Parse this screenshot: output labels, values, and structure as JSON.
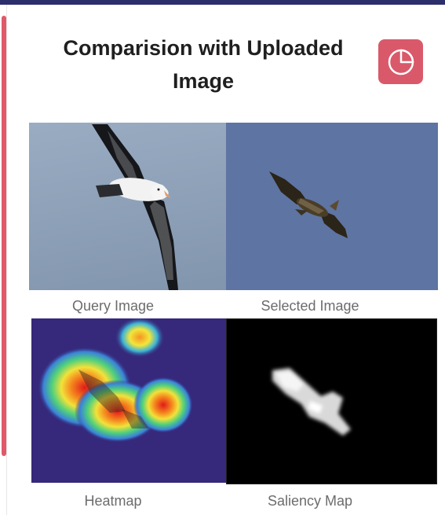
{
  "header": {
    "title_line1": "Comparision with Uploaded",
    "title_line2": "Image",
    "chart_button_icon": "pie-chart-icon"
  },
  "panels": [
    {
      "id": "query",
      "caption": "Query Image",
      "image": "albatross-in-flight"
    },
    {
      "id": "selected",
      "caption": "Selected Image",
      "image": "eagle-in-flight"
    },
    {
      "id": "heatmap",
      "caption": "Heatmap",
      "image": "heatmap-overlay"
    },
    {
      "id": "saliency",
      "caption": "Saliency Map",
      "image": "saliency-mask"
    }
  ],
  "colors": {
    "top_bar": "#2b2f6b",
    "accent": "#d9596a",
    "caption_text": "#6c6c6c"
  }
}
